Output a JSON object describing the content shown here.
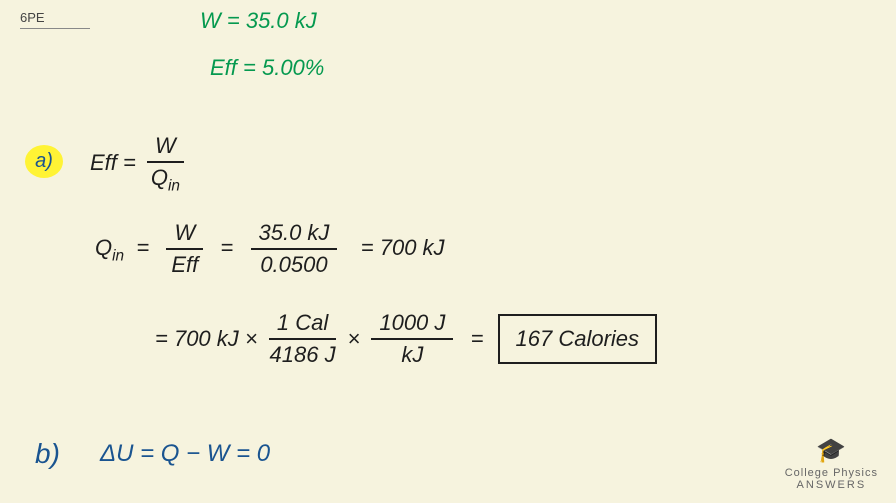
{
  "problem_label": "6PE",
  "given": {
    "work": "W = 35.0 kJ",
    "efficiency": "Eff = 5.00%"
  },
  "part_a": {
    "marker": "a)",
    "eq1_lhs": "Eff  =",
    "eq1_frac_num": "W",
    "eq1_frac_den": "Qₒ",
    "eq1_frac_den_sub": "in",
    "eq2_lhs": "Q",
    "eq2_lhs_sub": "in",
    "eq2_equals": "=",
    "eq2_frac1_num": "W",
    "eq2_frac1_den": "Eff",
    "eq2_frac2_num": "35.0 kJ",
    "eq2_frac2_den": "0.0500",
    "eq2_result": "=  700 kJ",
    "eq3_start": "= 700 kJ ×",
    "eq3_frac1_num": "1 Cal",
    "eq3_frac1_den": "4186 J",
    "eq3_times": "×",
    "eq3_frac2_num": "1000 J",
    "eq3_frac2_den": "kJ",
    "eq3_equals": "=",
    "answer": "167 Calories"
  },
  "part_b": {
    "marker": "b)",
    "equation": "ΔU = Q − W  = 0"
  },
  "logo": {
    "line1": "College Physics",
    "line2": "ANSWERS"
  },
  "colors": {
    "background": "#f6f3de",
    "green": "#05994f",
    "black": "#1e1e1e",
    "blue": "#1a5490",
    "highlight": "#fff335",
    "logo_color": "#666"
  }
}
